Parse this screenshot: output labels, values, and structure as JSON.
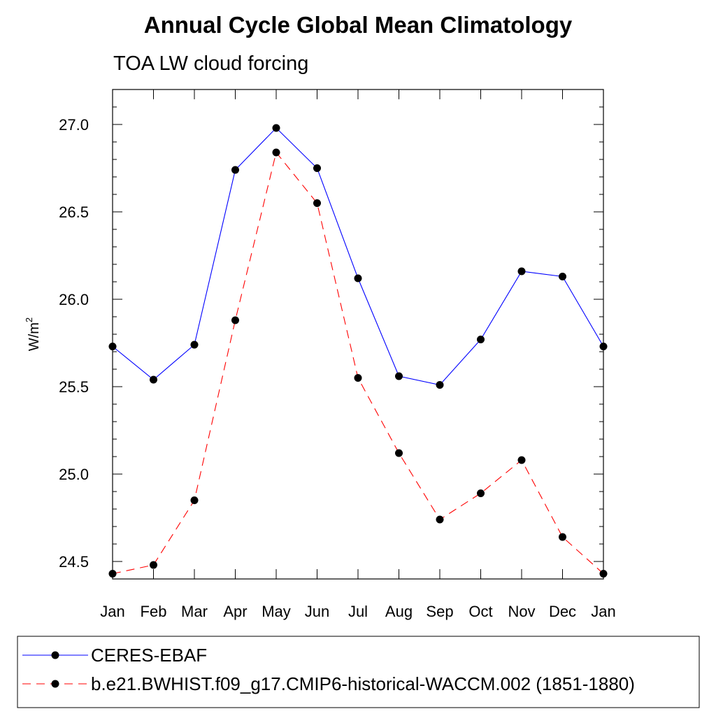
{
  "chart_data": {
    "type": "line",
    "title": "Annual Cycle Global Mean Climatology",
    "subtitle": "TOA LW cloud forcing",
    "ylabel": "W/m",
    "ylabel_superscript": "2",
    "xlabel": "",
    "categories": [
      "Jan",
      "Feb",
      "Mar",
      "Apr",
      "May",
      "Jun",
      "Jul",
      "Aug",
      "Sep",
      "Oct",
      "Nov",
      "Dec",
      "Jan"
    ],
    "ylim": [
      24.4,
      27.2
    ],
    "yticks": [
      "24.5",
      "25.0",
      "25.5",
      "26.0",
      "26.5",
      "27.0"
    ],
    "grid": false,
    "legend_position": "bottom",
    "series": [
      {
        "name": "CERES-EBAF",
        "color": "#0000ff",
        "dash": "solid",
        "values": [
          25.73,
          25.54,
          25.74,
          26.74,
          26.98,
          26.75,
          26.12,
          25.56,
          25.51,
          25.77,
          26.16,
          26.13,
          25.73
        ]
      },
      {
        "name": "b.e21.BWHIST.f09_g17.CMIP6-historical-WACCM.002 (1851-1880)",
        "color": "#ff0000",
        "dash": "dashed",
        "values": [
          24.43,
          24.48,
          24.85,
          25.88,
          26.84,
          26.55,
          25.55,
          25.12,
          24.74,
          24.89,
          25.08,
          24.64,
          24.43
        ]
      }
    ]
  }
}
